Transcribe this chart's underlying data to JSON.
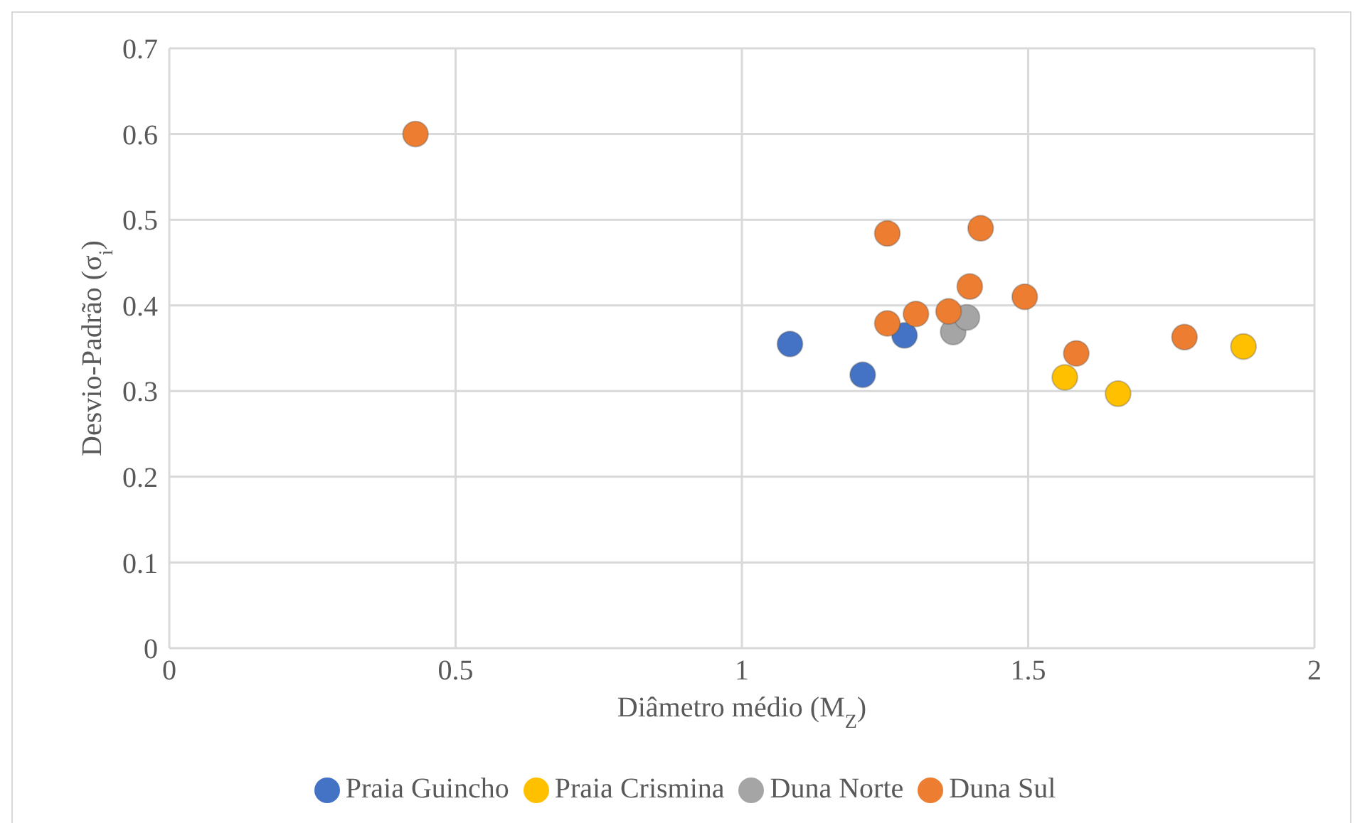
{
  "chart_data": {
    "type": "scatter",
    "xlabel": "Diâmetro médio (M$_{Z}$)",
    "ylabel": "Desvio-Padrão (σ$_{i}$)",
    "xlim": [
      0,
      2
    ],
    "xticks": [
      0,
      0.5,
      1,
      1.5,
      2
    ],
    "ylim": [
      0,
      0.7
    ],
    "yticks": [
      0,
      0.1,
      0.2,
      0.3,
      0.4,
      0.5,
      0.6,
      0.7
    ],
    "grid": true,
    "legend": "bottom",
    "marker": "circle",
    "series": [
      {
        "name": "Praia Guincho",
        "color": "#4472c4",
        "x": [
          1.084,
          1.211,
          1.284
        ],
        "values": [
          0.355,
          0.319,
          0.365
        ]
      },
      {
        "name": "Praia Crismina",
        "color": "#ffc000",
        "x": [
          1.564,
          1.657,
          1.876
        ],
        "values": [
          0.316,
          0.297,
          0.352
        ]
      },
      {
        "name": "Duna Norte",
        "color": "#a5a5a5",
        "x": [
          1.369,
          1.393
        ],
        "values": [
          0.369,
          0.386
        ]
      },
      {
        "name": "Duna Sul",
        "color": "#ed7d31",
        "x": [
          0.43,
          1.254,
          1.417,
          1.398,
          1.494,
          1.254,
          1.304,
          1.361,
          1.584,
          1.773
        ],
        "values": [
          0.6,
          0.484,
          0.49,
          0.422,
          0.41,
          0.379,
          0.39,
          0.393,
          0.344,
          0.363
        ]
      }
    ]
  }
}
